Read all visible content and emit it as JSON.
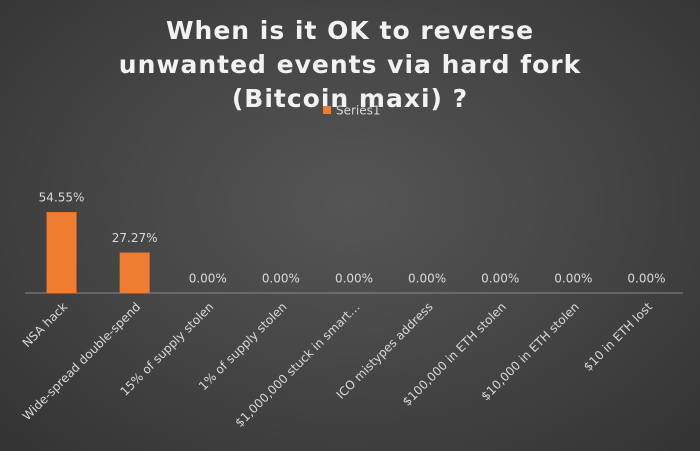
{
  "chart_data": {
    "type": "bar",
    "title": "When is it OK to reverse unwanted events via hard fork (Bitcoin maxi) ?",
    "categories": [
      "NSA hack",
      "Wide-spread double-spend",
      "15% of supply stolen",
      "1% of supply stolen",
      "$1,000,000 stuck in smart…",
      "ICO mistypes address",
      "$100,000 in ETH stolen",
      "$10,000 in ETH stolen",
      "$10 in ETH lost"
    ],
    "series": [
      {
        "name": "Series1",
        "color": "#ee7d31",
        "values": [
          54.55,
          27.27,
          0,
          0,
          0,
          0,
          0,
          0,
          0
        ],
        "value_labels": [
          "54.55%",
          "27.27%",
          "0.00%",
          "0.00%",
          "0.00%",
          "0.00%",
          "0.00%",
          "0.00%",
          "0.00%"
        ]
      }
    ],
    "ylim": [
      0,
      60
    ],
    "legend": "top"
  }
}
